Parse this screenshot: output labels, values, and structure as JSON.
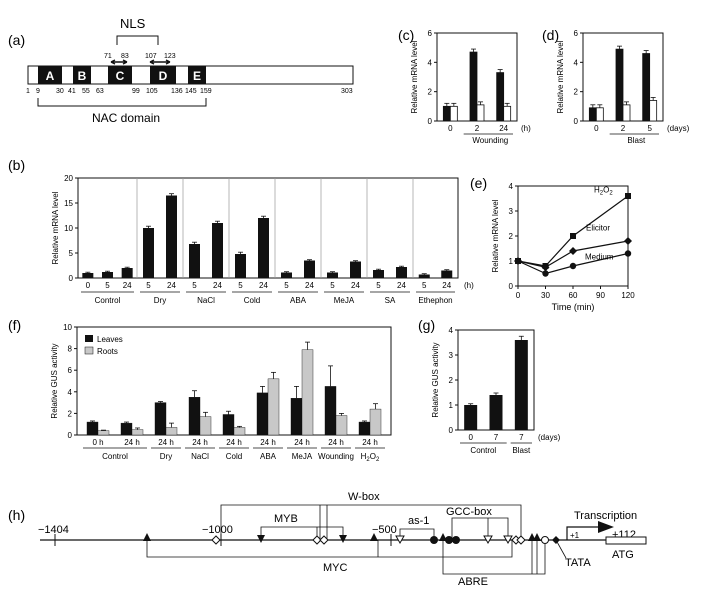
{
  "panel_labels": {
    "a": "(a)",
    "b": "(b)",
    "c": "(c)",
    "d": "(d)",
    "e": "(e)",
    "f": "(f)",
    "g": "(g)",
    "h": "(h)"
  },
  "panel_a": {
    "nls_label": "NLS",
    "nac_label": "NAC domain",
    "domains": [
      "A",
      "B",
      "C",
      "D",
      "E"
    ],
    "nls_ticks": [
      "71",
      "83",
      "107",
      "123"
    ],
    "positions": [
      "1",
      "9",
      "30",
      "41",
      "55",
      "63",
      "99",
      "105",
      "136",
      "145",
      "159",
      "303"
    ]
  },
  "chart_data": [
    {
      "id": "c",
      "type": "bar",
      "ylabel": "Relative mRNA level",
      "xlabel": "Wounding",
      "x_unit": "(h)",
      "categories": [
        "0",
        "2",
        "24"
      ],
      "ylim": [
        0,
        6
      ],
      "yticks": [
        0,
        2,
        4,
        6
      ],
      "series": [
        {
          "values": [
            1.0,
            4.7,
            3.3
          ],
          "color": "#111111"
        },
        {
          "values": [
            1.0,
            1.1,
            1.0
          ],
          "color": "#ffffff"
        }
      ]
    },
    {
      "id": "d",
      "type": "bar",
      "ylabel": "Relative mRNA level",
      "xlabel": "Blast",
      "x_unit": "(days)",
      "categories": [
        "0",
        "2",
        "5"
      ],
      "ylim": [
        0,
        6
      ],
      "yticks": [
        0,
        2,
        4,
        6
      ],
      "series": [
        {
          "values": [
            0.9,
            4.9,
            4.6
          ],
          "color": "#111111"
        },
        {
          "values": [
            0.9,
            1.1,
            1.4
          ],
          "color": "#ffffff"
        }
      ]
    },
    {
      "id": "b",
      "type": "bar",
      "ylabel": "Relative mRNA level",
      "x_unit": "(h)",
      "ylim": [
        0,
        20
      ],
      "yticks": [
        0,
        5,
        10,
        15,
        20
      ],
      "groups": [
        "Control",
        "Dry",
        "NaCl",
        "Cold",
        "ABA",
        "MeJA",
        "SA",
        "Ethephon"
      ],
      "tick_labels": [
        "0",
        "5",
        "24",
        "5",
        "24",
        "5",
        "24",
        "5",
        "24",
        "5",
        "24",
        "5",
        "24",
        "5",
        "24",
        "5",
        "24"
      ],
      "values": [
        1.0,
        1.2,
        2.0,
        10.0,
        16.5,
        6.8,
        11.0,
        4.8,
        12.0,
        1.1,
        3.5,
        1.1,
        3.3,
        1.6,
        2.2,
        0.7,
        1.5
      ]
    },
    {
      "id": "e",
      "type": "line",
      "ylabel": "Relative mRNA level",
      "xlabel": "Time (min)",
      "xticks": [
        0,
        30,
        60,
        90,
        120
      ],
      "yticks": [
        0,
        1,
        2,
        3,
        4
      ],
      "xlim": [
        0,
        120
      ],
      "ylim": [
        0,
        4
      ],
      "series": [
        {
          "name": "H2O2",
          "label_main": "H",
          "label_sub": "2",
          "label_tail": "O",
          "label_sub2": "2",
          "x": [
            0,
            30,
            60,
            120
          ],
          "y": [
            1.0,
            0.8,
            2.0,
            3.6
          ],
          "marker": "square"
        },
        {
          "name": "Elicitor",
          "x": [
            0,
            30,
            60,
            120
          ],
          "y": [
            1.0,
            0.75,
            1.4,
            1.8
          ],
          "marker": "diamond"
        },
        {
          "name": "Medium",
          "x": [
            0,
            30,
            60,
            120
          ],
          "y": [
            1.0,
            0.5,
            0.8,
            1.3
          ],
          "marker": "circle"
        }
      ]
    },
    {
      "id": "f",
      "type": "bar",
      "ylabel": "Relative GUS activity",
      "ylim": [
        0,
        10
      ],
      "yticks": [
        0,
        2,
        4,
        6,
        8,
        10
      ],
      "legend": [
        "Leaves",
        "Roots"
      ],
      "groups": [
        "Control",
        "Dry",
        "NaCl",
        "Cold",
        "ABA",
        "MeJA",
        "Wounding",
        "H2O2"
      ],
      "tick_labels": [
        "0 h",
        "24 h",
        "24 h",
        "24 h",
        "24 h",
        "24 h",
        "24 h",
        "24 h",
        "24 h"
      ],
      "series": [
        {
          "name": "Leaves",
          "values": [
            1.2,
            1.1,
            3.0,
            3.5,
            1.9,
            3.9,
            3.4,
            4.5,
            1.2
          ],
          "color": "#111111"
        },
        {
          "name": "Roots",
          "values": [
            0.4,
            0.5,
            0.7,
            1.7,
            0.7,
            5.2,
            7.9,
            1.8,
            2.4
          ],
          "color": "#c8c8c8"
        }
      ]
    },
    {
      "id": "g",
      "type": "bar",
      "ylabel": "Relative GUS activity",
      "x_unit": "(days)",
      "categories": [
        "0",
        "7",
        "7"
      ],
      "groups": [
        "Control",
        "Blast"
      ],
      "ylim": [
        0,
        4
      ],
      "yticks": [
        0,
        1,
        2,
        3,
        4
      ],
      "values": [
        1.0,
        1.4,
        3.6
      ]
    }
  ],
  "panel_h": {
    "positions": [
      "−1404",
      "−1000",
      "−500",
      "+112"
    ],
    "plus_one": "+1",
    "labels": {
      "wbox": "W-box",
      "myb": "MYB",
      "as1": "as-1",
      "gcc": "GCC-box",
      "myc": "MYC",
      "abre": "ABRE",
      "tata": "TATA",
      "atg": "ATG",
      "transcription": "Transcription"
    }
  }
}
